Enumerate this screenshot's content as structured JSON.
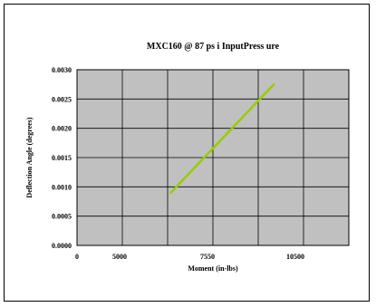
{
  "chart_data": {
    "type": "line",
    "title": "MXC160 @ 87 ps i InputPress ure",
    "xlabel": "Moment (in-lbs)",
    "ylabel": "Deflection Angle (degrees)",
    "xlim": [
      0,
      14500
    ],
    "ylim": [
      0,
      0.003
    ],
    "x_tick_labels": [
      "0",
      "5000",
      "7550",
      "10500"
    ],
    "y_tick_labels": [
      "0.0000",
      "0.0005",
      "0.0010",
      "0.0015",
      "0.0020",
      "0.0025",
      "0.0030"
    ],
    "grid": true,
    "legend": "none",
    "plot_background": "#c0c0c0",
    "series": [
      {
        "color": "#99cc00",
        "x": [
          5000,
          10500
        ],
        "y": [
          0.0009,
          0.00275
        ]
      }
    ]
  }
}
